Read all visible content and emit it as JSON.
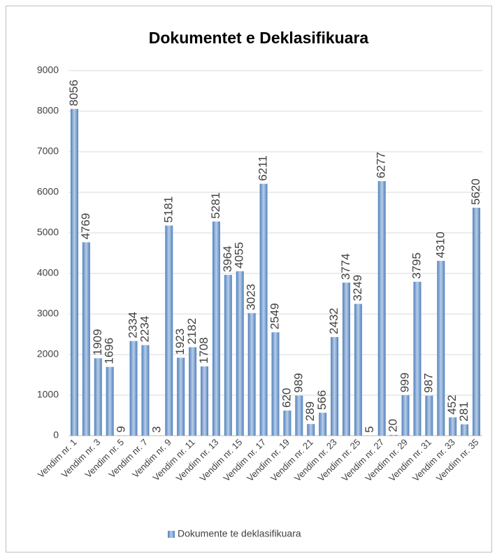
{
  "chart_data": {
    "type": "bar",
    "title": "Dokumentet e Deklasifikuara",
    "categories": [
      "Vendim nr. 1",
      null,
      "Vendim nr. 3",
      null,
      "Vendim nr. 5",
      null,
      "Vendim nr. 7",
      null,
      "Vendim nr. 9",
      null,
      "Vendim nr. 11",
      null,
      "Vendim nr. 13",
      null,
      "Vendim nr. 15",
      null,
      "Vendim nr. 17",
      null,
      "Vendim nr. 19",
      null,
      "Vendim nr. 21",
      null,
      "Vendim nr. 23",
      null,
      "Vendim nr. 25",
      null,
      "Vendim nr. 27",
      null,
      "Vendim nr. 29",
      null,
      "Vendim nr. 31",
      null,
      "Vendim nr. 33",
      null,
      "Vendim nr. 35"
    ],
    "series": [
      {
        "name": "Dokumente te deklasifikuara",
        "color": "#4f81bd",
        "values": [
          8056,
          4769,
          1909,
          1696,
          9,
          2334,
          2234,
          3,
          5181,
          1923,
          2182,
          1708,
          5281,
          3964,
          4055,
          3023,
          6211,
          2549,
          620,
          989,
          289,
          566,
          2432,
          3774,
          3249,
          5,
          6277,
          20,
          999,
          3795,
          987,
          4310,
          452,
          281,
          5620
        ]
      }
    ],
    "ylim": [
      0,
      9000
    ],
    "yticks": [
      0,
      1000,
      2000,
      3000,
      4000,
      5000,
      6000,
      7000,
      8000,
      9000
    ],
    "grid": true,
    "legend": "bottom"
  }
}
